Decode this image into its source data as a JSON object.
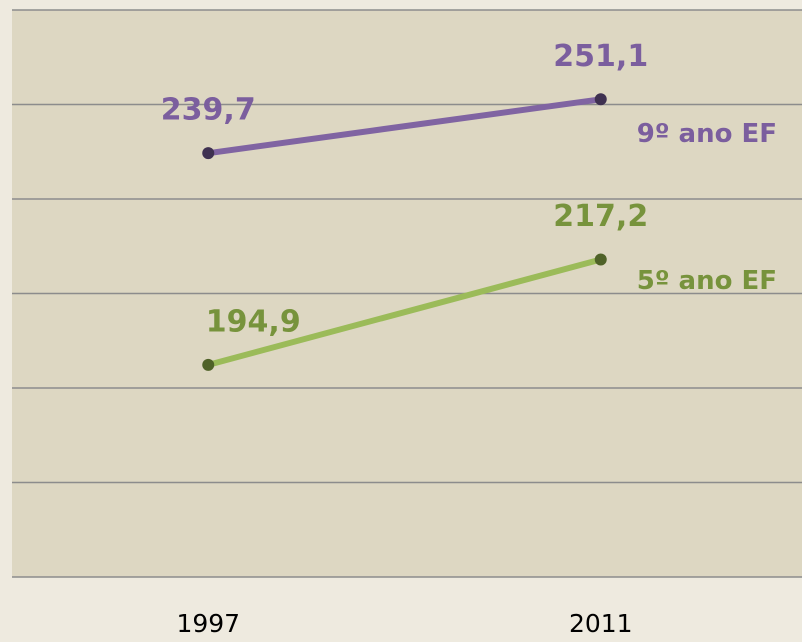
{
  "chart_data": {
    "type": "line",
    "categories": [
      "1997",
      "2011"
    ],
    "series": [
      {
        "name": "9º ano EF",
        "color": "#8064a2",
        "values": [
          239.7,
          251.1
        ],
        "value_labels": [
          "239,7",
          "251,1"
        ]
      },
      {
        "name": "5º ano EF",
        "color": "#9bbb59",
        "values": [
          194.9,
          217.2
        ],
        "value_labels": [
          "194,9",
          "217,2"
        ]
      }
    ],
    "ylim": [
      150,
      270
    ],
    "yticks": [
      150,
      170,
      190,
      210,
      230,
      250,
      270
    ],
    "grid": true
  }
}
